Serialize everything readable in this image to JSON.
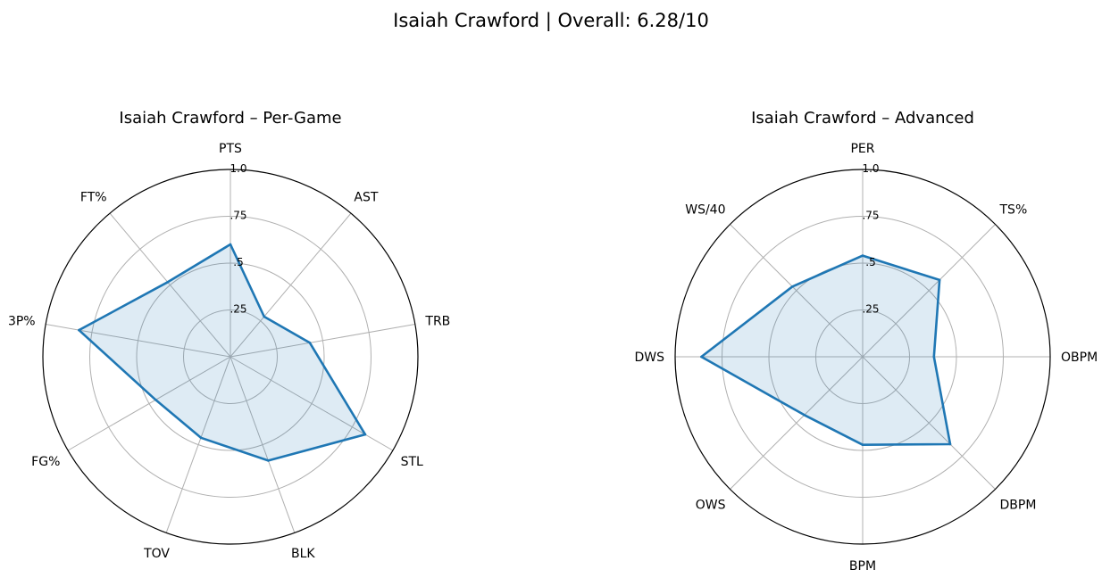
{
  "figure": {
    "title": "Isaiah Crawford | Overall: 6.28/10"
  },
  "colors": {
    "line": "#1f77b4",
    "fill": "#1f77b4",
    "grid": "#b0b0b0",
    "spine": "#000000"
  },
  "chart_data": [
    {
      "type": "radar",
      "title": "Isaiah Crawford – Per-Game",
      "categories": [
        "PTS",
        "AST",
        "TRB",
        "STL",
        "BLK",
        "TOV",
        "FG%",
        "3P%",
        "FT%"
      ],
      "series": [
        {
          "values": [
            0.6,
            0.28,
            0.43,
            0.83,
            0.59,
            0.46,
            0.46,
            0.82,
            0.52
          ]
        }
      ],
      "rlim": [
        0,
        1
      ],
      "rticks": [
        0.25,
        0.5,
        0.75,
        1.0
      ],
      "rtick_labels": [
        ".25",
        ".5",
        ".75",
        "1.0"
      ],
      "grid": true
    },
    {
      "type": "radar",
      "title": "Isaiah Crawford – Advanced",
      "categories": [
        "PER",
        "TS%",
        "OBPM",
        "DBPM",
        "BPM",
        "OWS",
        "DWS",
        "WS/40"
      ],
      "series": [
        {
          "values": [
            0.54,
            0.58,
            0.38,
            0.66,
            0.47,
            0.44,
            0.86,
            0.53
          ]
        }
      ],
      "rlim": [
        0,
        1
      ],
      "rticks": [
        0.25,
        0.5,
        0.75,
        1.0
      ],
      "rtick_labels": [
        ".25",
        ".5",
        ".75",
        "1.0"
      ],
      "grid": true
    }
  ]
}
